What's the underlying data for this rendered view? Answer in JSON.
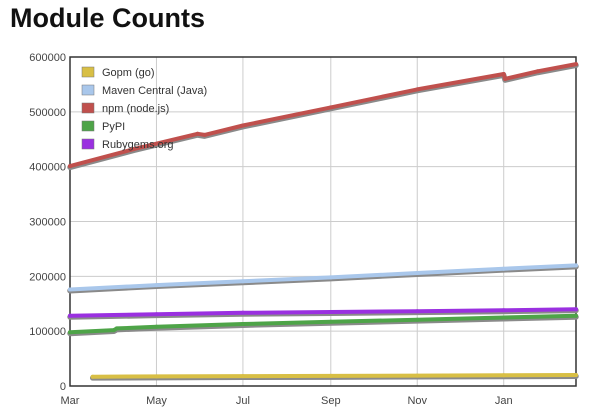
{
  "chart_data": {
    "type": "line",
    "title": "Module Counts",
    "xlabel": "",
    "ylabel": "",
    "x_ticks": [
      {
        "label": "Mar",
        "x": "2013-03-01"
      },
      {
        "label": "May",
        "x": "2013-05-01"
      },
      {
        "label": "Jul",
        "x": "2013-07-01"
      },
      {
        "label": "Sep",
        "x": "2013-09-01"
      },
      {
        "label": "Nov",
        "x": "2013-11-01"
      },
      {
        "label": "Jan",
        "x": "2014-01-01"
      }
    ],
    "xlim": [
      "2013-03-01",
      "2014-02-21"
    ],
    "ylim": [
      0,
      600000
    ],
    "y_ticks": [
      "0",
      "100000",
      "200000",
      "300000",
      "400000",
      "500000",
      "600000"
    ],
    "grid": true,
    "legend_position": "top-left",
    "series": [
      {
        "name": "Gopm (go)",
        "color": "#d8bf45",
        "points": [
          [
            "2013-03-17",
            17000
          ],
          [
            "2013-05-01",
            17500
          ],
          [
            "2013-07-01",
            18000
          ],
          [
            "2013-09-01",
            18500
          ],
          [
            "2013-11-01",
            19000
          ],
          [
            "2014-01-01",
            19500
          ],
          [
            "2014-02-21",
            20000
          ]
        ]
      },
      {
        "name": "Maven Central (Java)",
        "color": "#a9c7eb",
        "points": [
          [
            "2013-03-01",
            176000
          ],
          [
            "2013-05-01",
            184000
          ],
          [
            "2013-07-01",
            191000
          ],
          [
            "2013-09-01",
            198000
          ],
          [
            "2013-11-01",
            206000
          ],
          [
            "2014-01-01",
            214000
          ],
          [
            "2014-02-21",
            220000
          ]
        ]
      },
      {
        "name": "npm (node.js)",
        "color": "#c0504d",
        "points": [
          [
            "2013-03-01",
            401000
          ],
          [
            "2013-04-15",
            432000
          ],
          [
            "2013-05-30",
            460000
          ],
          [
            "2013-06-04",
            458000
          ],
          [
            "2013-07-01",
            475000
          ],
          [
            "2013-09-01",
            508000
          ],
          [
            "2013-11-01",
            541000
          ],
          [
            "2014-01-01",
            569000
          ],
          [
            "2014-01-02",
            560000
          ],
          [
            "2014-01-25",
            574000
          ],
          [
            "2014-02-21",
            587000
          ]
        ]
      },
      {
        "name": "PyPI",
        "color": "#4ea448",
        "points": [
          [
            "2013-03-01",
            98000
          ],
          [
            "2013-04-01",
            102000
          ],
          [
            "2013-04-03",
            105000
          ],
          [
            "2013-05-01",
            108000
          ],
          [
            "2013-07-01",
            113000
          ],
          [
            "2013-09-01",
            117000
          ],
          [
            "2013-11-01",
            121000
          ],
          [
            "2014-01-01",
            125000
          ],
          [
            "2014-02-21",
            128000
          ]
        ]
      },
      {
        "name": "Rubygems.org",
        "color": "#9a30e0",
        "points": [
          [
            "2013-03-01",
            128000
          ],
          [
            "2013-05-01",
            131000
          ],
          [
            "2013-07-01",
            133500
          ],
          [
            "2013-09-01",
            135000
          ],
          [
            "2013-11-01",
            136500
          ],
          [
            "2014-01-01",
            138000
          ],
          [
            "2014-02-21",
            140000
          ]
        ]
      }
    ]
  }
}
